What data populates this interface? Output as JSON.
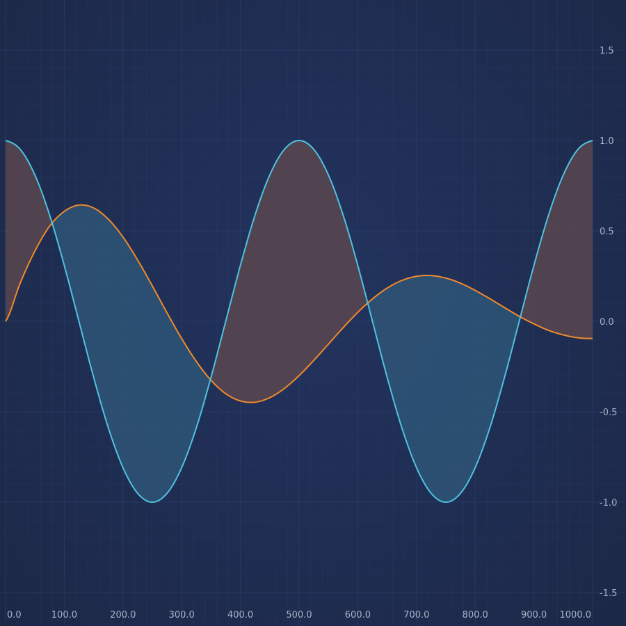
{
  "chart_data": {
    "type": "line",
    "fill_between": true,
    "title": "",
    "xlabel": "",
    "ylabel": "",
    "xlim": [
      0,
      1000
    ],
    "ylim": [
      -1.5,
      1.5
    ],
    "x_ticks": [
      "0.0",
      "100.0",
      "200.0",
      "300.0",
      "400.0",
      "500.0",
      "600.0",
      "700.0",
      "800.0",
      "900.0",
      "1000.0"
    ],
    "y_ticks": [
      "1.5",
      "1.0",
      "0.5",
      "0.0",
      "-0.5",
      "-1.0",
      "-1.5"
    ],
    "y_axis_position": "right",
    "grid": true,
    "x": [
      0,
      25,
      50,
      75,
      100,
      125,
      150,
      175,
      200,
      225,
      250,
      275,
      300,
      325,
      350,
      375,
      400,
      425,
      450,
      475,
      500,
      525,
      550,
      575,
      600,
      625,
      650,
      675,
      700,
      725,
      750,
      775,
      800,
      825,
      850,
      875,
      900,
      925,
      950,
      975,
      1000
    ],
    "series": [
      {
        "color": "#f08a2c",
        "values": [
          0.0,
          0.212,
          0.389,
          0.526,
          0.608,
          0.643,
          0.627,
          0.565,
          0.466,
          0.339,
          0.196,
          0.047,
          -0.095,
          -0.222,
          -0.326,
          -0.4,
          -0.44,
          -0.447,
          -0.422,
          -0.371,
          -0.3,
          -0.216,
          -0.126,
          -0.035,
          0.05,
          0.124,
          0.184,
          0.226,
          0.249,
          0.253,
          0.239,
          0.211,
          0.171,
          0.125,
          0.076,
          0.028,
          -0.014,
          -0.05,
          -0.075,
          -0.091,
          -0.095
        ]
      },
      {
        "color": "#4fc3e0",
        "values": [
          1.0,
          0.951,
          0.809,
          0.588,
          0.309,
          0.0,
          -0.309,
          -0.588,
          -0.809,
          -0.951,
          -1.0,
          -0.951,
          -0.809,
          -0.588,
          -0.309,
          0.0,
          0.309,
          0.588,
          0.809,
          0.951,
          1.0,
          0.951,
          0.809,
          0.588,
          0.309,
          0.0,
          -0.309,
          -0.588,
          -0.809,
          -0.951,
          -1.0,
          -0.951,
          -0.809,
          -0.588,
          -0.309,
          0.0,
          0.309,
          0.588,
          0.809,
          0.951,
          1.0
        ]
      }
    ],
    "fill_colors": {
      "above": "#5a4650",
      "below": "#2e5577"
    }
  }
}
